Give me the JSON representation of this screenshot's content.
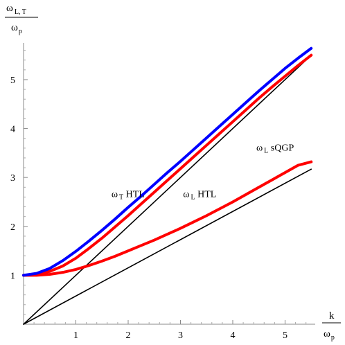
{
  "chart_data": {
    "type": "line",
    "ylabel": {
      "num_main": "ω",
      "num_sub": "L, T",
      "den_main": "ω",
      "den_sub": "p"
    },
    "xlabel": {
      "num_main": "k",
      "den_main": "ω",
      "den_sub": "p"
    },
    "xlim": [
      0,
      5.55
    ],
    "ylim": [
      0,
      5.75
    ],
    "x_ticks": [
      1,
      2,
      3,
      4,
      5
    ],
    "y_ticks": [
      1,
      2,
      3,
      4,
      5
    ],
    "grid": false,
    "annotations": [
      {
        "main": "ω",
        "sub": "T",
        "rest": " HTL",
        "x": 1.68,
        "y": 2.6
      },
      {
        "main": "ω",
        "sub": "L",
        "rest": " HTL",
        "x": 3.05,
        "y": 2.6
      },
      {
        "main": "ω",
        "sub": "L",
        "rest": " sQGP",
        "x": 4.45,
        "y": 3.55
      }
    ],
    "series": [
      {
        "color": "#0000ff",
        "x": [
          0,
          0.25,
          0.5,
          0.75,
          1,
          1.25,
          1.5,
          1.75,
          2,
          2.25,
          2.5,
          2.75,
          3,
          3.25,
          3.5,
          3.75,
          4,
          4.25,
          4.5,
          4.75,
          5,
          5.25,
          5.5
        ],
        "y": [
          1.0,
          1.04,
          1.14,
          1.3,
          1.49,
          1.7,
          1.92,
          2.15,
          2.39,
          2.62,
          2.86,
          3.1,
          3.33,
          3.57,
          3.81,
          4.05,
          4.29,
          4.53,
          4.77,
          5.0,
          5.23,
          5.44,
          5.64
        ]
      },
      {
        "color": "#ff0000",
        "x": [
          0,
          0.25,
          0.5,
          0.75,
          1,
          1.25,
          1.5,
          1.75,
          2,
          2.25,
          2.5,
          2.75,
          3,
          3.25,
          3.5,
          3.75,
          4,
          4.25,
          4.5,
          4.75,
          5,
          5.25,
          5.5
        ],
        "y": [
          1.0,
          1.02,
          1.08,
          1.19,
          1.35,
          1.55,
          1.76,
          1.99,
          2.22,
          2.46,
          2.7,
          2.94,
          3.18,
          3.42,
          3.66,
          3.9,
          4.14,
          4.38,
          4.62,
          4.85,
          5.07,
          5.29,
          5.5
        ]
      },
      {
        "color": "#ff0000",
        "x": [
          0,
          0.25,
          0.5,
          0.75,
          1,
          1.25,
          1.5,
          1.75,
          2,
          2.25,
          2.5,
          2.75,
          3,
          3.25,
          3.5,
          3.75,
          4,
          4.25,
          4.5,
          4.75,
          5,
          5.25,
          5.5
        ],
        "y": [
          1.0,
          1.0,
          1.02,
          1.06,
          1.12,
          1.2,
          1.29,
          1.39,
          1.5,
          1.61,
          1.72,
          1.84,
          1.96,
          2.09,
          2.22,
          2.36,
          2.5,
          2.65,
          2.8,
          2.95,
          3.1,
          3.25,
          3.32
        ]
      },
      {
        "color": "#000000",
        "x": [
          0,
          5.5
        ],
        "y": [
          0,
          5.5
        ]
      },
      {
        "color": "#000000",
        "x": [
          0,
          5.5
        ],
        "y": [
          0,
          3.17
        ]
      }
    ]
  }
}
